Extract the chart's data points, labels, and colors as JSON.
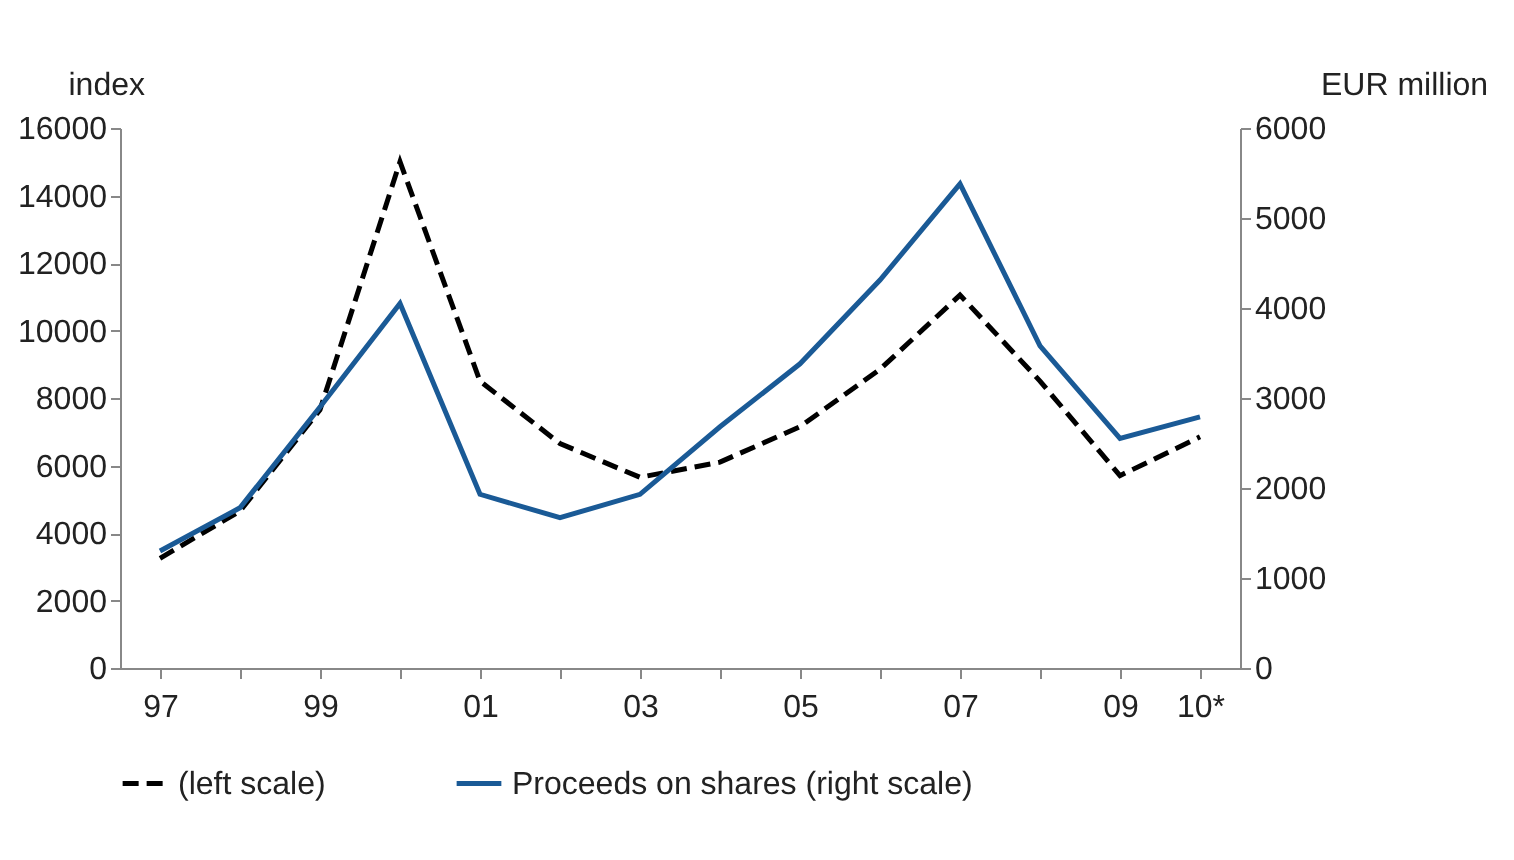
{
  "chart_data": {
    "type": "line",
    "ylabel": "index",
    "y2label": "EUR million",
    "categories": [
      "97",
      null,
      "99",
      null,
      "01",
      null,
      "03",
      null,
      "05",
      null,
      "07",
      null,
      "09",
      "10*"
    ],
    "series": [
      {
        "name": "(left scale)",
        "color": "#000000",
        "line_style": "dashed",
        "axis": "y",
        "values": [
          3250,
          4650,
          7650,
          15000,
          8500,
          6650,
          5650,
          6100,
          7150,
          8850,
          11050,
          8500,
          5700,
          6850
        ]
      },
      {
        "name": "Proceeds on shares (right scale)",
        "color": "#1a5a96",
        "line_style": "solid",
        "axis": "y2",
        "values": [
          1300,
          1780,
          2900,
          4050,
          1930,
          1670,
          1930,
          2680,
          3380,
          4310,
          5380,
          3580,
          2550,
          2790
        ]
      }
    ],
    "ylim": [
      0,
      16000
    ],
    "yticks": [
      0,
      2000,
      4000,
      6000,
      8000,
      10000,
      12000,
      14000,
      16000
    ],
    "y2lim": [
      0,
      6000
    ],
    "y2ticks": [
      0,
      1000,
      2000,
      3000,
      4000,
      5000,
      6000
    ],
    "grid": false,
    "legend": "bottom"
  }
}
